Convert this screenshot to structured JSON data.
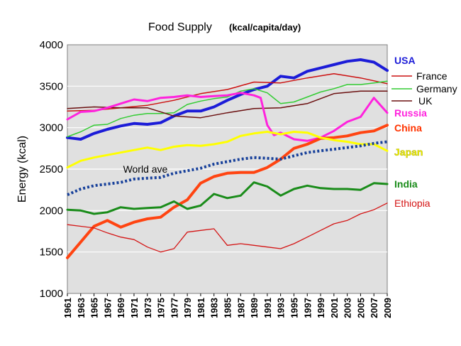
{
  "chart_data": {
    "type": "line",
    "title": "Food Supply",
    "subtitle": "(kcal/capita/day)",
    "xlabel": "",
    "ylabel": "Energy  (kcal)",
    "xlim": [
      1961,
      2009
    ],
    "ylim": [
      1000,
      4000
    ],
    "yticks": [
      1000,
      1500,
      2000,
      2500,
      3000,
      3500,
      4000
    ],
    "xticks": [
      1961,
      1963,
      1965,
      1967,
      1969,
      1971,
      1973,
      1975,
      1977,
      1979,
      1981,
      1983,
      1985,
      1987,
      1989,
      1991,
      1993,
      1995,
      1997,
      1999,
      2001,
      2003,
      2005,
      2007,
      2009
    ],
    "grid": true,
    "plot_bg": "#e0e0e0",
    "annotations": [
      {
        "text": "World ave",
        "x": 1970,
        "y": 2440
      }
    ],
    "series": [
      {
        "name": "USA",
        "color": "#1c1cd8",
        "width": 4,
        "legend": "label",
        "label_color": "#1c1cd8",
        "x": [
          1961,
          1963,
          1965,
          1967,
          1969,
          1971,
          1973,
          1975,
          1977,
          1979,
          1981,
          1983,
          1985,
          1987,
          1989,
          1991,
          1993,
          1995,
          1997,
          1999,
          2001,
          2003,
          2005,
          2007,
          2009
        ],
        "y": [
          2880,
          2860,
          2930,
          2980,
          3020,
          3050,
          3040,
          3060,
          3140,
          3200,
          3200,
          3250,
          3330,
          3400,
          3460,
          3500,
          3620,
          3600,
          3680,
          3720,
          3760,
          3800,
          3820,
          3790,
          3690
        ]
      },
      {
        "name": "France",
        "color": "#cc1010",
        "width": 1.5,
        "legend": "entry",
        "x": [
          1961,
          1965,
          1969,
          1973,
          1977,
          1981,
          1985,
          1989,
          1993,
          1997,
          2001,
          2005,
          2009
        ],
        "y": [
          3200,
          3210,
          3240,
          3270,
          3330,
          3410,
          3460,
          3550,
          3540,
          3600,
          3650,
          3600,
          3530
        ]
      },
      {
        "name": "Germany",
        "color": "#33cc33",
        "width": 1.5,
        "legend": "entry",
        "x": [
          1961,
          1963,
          1965,
          1967,
          1969,
          1971,
          1973,
          1975,
          1977,
          1979,
          1981,
          1983,
          1985,
          1987,
          1989,
          1991,
          1993,
          1995,
          1997,
          1999,
          2001,
          2003,
          2005,
          2007,
          2009
        ],
        "y": [
          2890,
          2950,
          3030,
          3040,
          3110,
          3150,
          3170,
          3170,
          3180,
          3280,
          3320,
          3350,
          3370,
          3440,
          3470,
          3420,
          3290,
          3310,
          3370,
          3430,
          3470,
          3520,
          3520,
          3540,
          3560
        ]
      },
      {
        "name": "UK",
        "color": "#6b1010",
        "width": 1.5,
        "legend": "entry",
        "x": [
          1961,
          1965,
          1969,
          1973,
          1977,
          1981,
          1985,
          1989,
          1993,
          1997,
          2001,
          2005,
          2009
        ],
        "y": [
          3230,
          3250,
          3240,
          3240,
          3140,
          3120,
          3180,
          3230,
          3240,
          3290,
          3410,
          3440,
          3440
        ]
      },
      {
        "name": "Russia",
        "color": "#ff22dd",
        "width": 3,
        "legend": "label",
        "label_color": "#ff22dd",
        "x": [
          1961,
          1963,
          1965,
          1967,
          1969,
          1971,
          1973,
          1975,
          1977,
          1979,
          1981,
          1983,
          1985,
          1987,
          1989,
          1990,
          1991,
          1992,
          1993,
          1995,
          1997,
          1999,
          2001,
          2003,
          2005,
          2007,
          2009
        ],
        "y": [
          3100,
          3190,
          3200,
          3240,
          3290,
          3340,
          3320,
          3360,
          3370,
          3390,
          3370,
          3380,
          3390,
          3420,
          3390,
          3360,
          3030,
          2910,
          2940,
          2860,
          2840,
          2880,
          2960,
          3070,
          3130,
          3360,
          3180
        ]
      },
      {
        "name": "China",
        "color": "#ff4411",
        "width": 4,
        "legend": "label",
        "label_color": "#ff3300",
        "x": [
          1961,
          1963,
          1965,
          1967,
          1969,
          1971,
          1973,
          1975,
          1977,
          1979,
          1981,
          1983,
          1985,
          1987,
          1989,
          1991,
          1993,
          1995,
          1997,
          1999,
          2001,
          2003,
          2005,
          2007,
          2009
        ],
        "y": [
          1430,
          1620,
          1810,
          1880,
          1800,
          1860,
          1900,
          1920,
          2040,
          2130,
          2330,
          2410,
          2450,
          2460,
          2460,
          2520,
          2620,
          2750,
          2800,
          2870,
          2880,
          2900,
          2940,
          2960,
          3030
        ]
      },
      {
        "name": "Japan",
        "color": "#ffff00",
        "width": 3,
        "legend": "label",
        "label_color": "#f0f000",
        "x": [
          1961,
          1963,
          1965,
          1967,
          1969,
          1971,
          1973,
          1975,
          1977,
          1979,
          1981,
          1983,
          1985,
          1987,
          1989,
          1991,
          1993,
          1995,
          1997,
          1999,
          2001,
          2003,
          2005,
          2007,
          2009
        ],
        "y": [
          2520,
          2600,
          2640,
          2670,
          2700,
          2730,
          2760,
          2730,
          2770,
          2790,
          2780,
          2800,
          2830,
          2900,
          2930,
          2950,
          2920,
          2950,
          2940,
          2880,
          2850,
          2830,
          2800,
          2800,
          2720
        ]
      },
      {
        "name": "World ave",
        "color": "#17409a",
        "width": 4,
        "dash": "3,3",
        "legend": "annotation",
        "x": [
          1961,
          1963,
          1965,
          1967,
          1969,
          1971,
          1973,
          1975,
          1977,
          1979,
          1981,
          1983,
          1985,
          1987,
          1989,
          1991,
          1993,
          1995,
          1997,
          1999,
          2001,
          2003,
          2005,
          2007,
          2009
        ],
        "y": [
          2190,
          2260,
          2300,
          2320,
          2340,
          2380,
          2390,
          2400,
          2450,
          2480,
          2510,
          2560,
          2590,
          2620,
          2640,
          2630,
          2620,
          2660,
          2700,
          2720,
          2740,
          2760,
          2780,
          2810,
          2830
        ]
      },
      {
        "name": "India",
        "color": "#1a8c1a",
        "width": 3,
        "legend": "label",
        "label_color": "#1a8c1a",
        "x": [
          1961,
          1963,
          1965,
          1967,
          1969,
          1971,
          1973,
          1975,
          1977,
          1979,
          1981,
          1983,
          1985,
          1987,
          1989,
          1991,
          1993,
          1995,
          1997,
          1999,
          2001,
          2003,
          2005,
          2007,
          2009
        ],
        "y": [
          2010,
          2000,
          1960,
          1980,
          2040,
          2020,
          2030,
          2040,
          2110,
          2020,
          2060,
          2200,
          2150,
          2180,
          2340,
          2290,
          2180,
          2260,
          2300,
          2270,
          2260,
          2260,
          2250,
          2330,
          2320
        ]
      },
      {
        "name": "Ethiopia",
        "color": "#d41515",
        "width": 1.3,
        "legend": "label",
        "label_color": "#d41515",
        "x": [
          1961,
          1963,
          1965,
          1967,
          1969,
          1971,
          1973,
          1975,
          1977,
          1979,
          1981,
          1983,
          1985,
          1987,
          1989,
          1991,
          1993,
          1995,
          1997,
          1999,
          2001,
          2003,
          2005,
          2007,
          2009
        ],
        "y": [
          1830,
          1810,
          1790,
          1730,
          1680,
          1650,
          1560,
          1500,
          1540,
          1740,
          1760,
          1780,
          1580,
          1600,
          1580,
          1560,
          1540,
          1600,
          1680,
          1760,
          1840,
          1880,
          1960,
          2010,
          2090
        ]
      }
    ]
  }
}
